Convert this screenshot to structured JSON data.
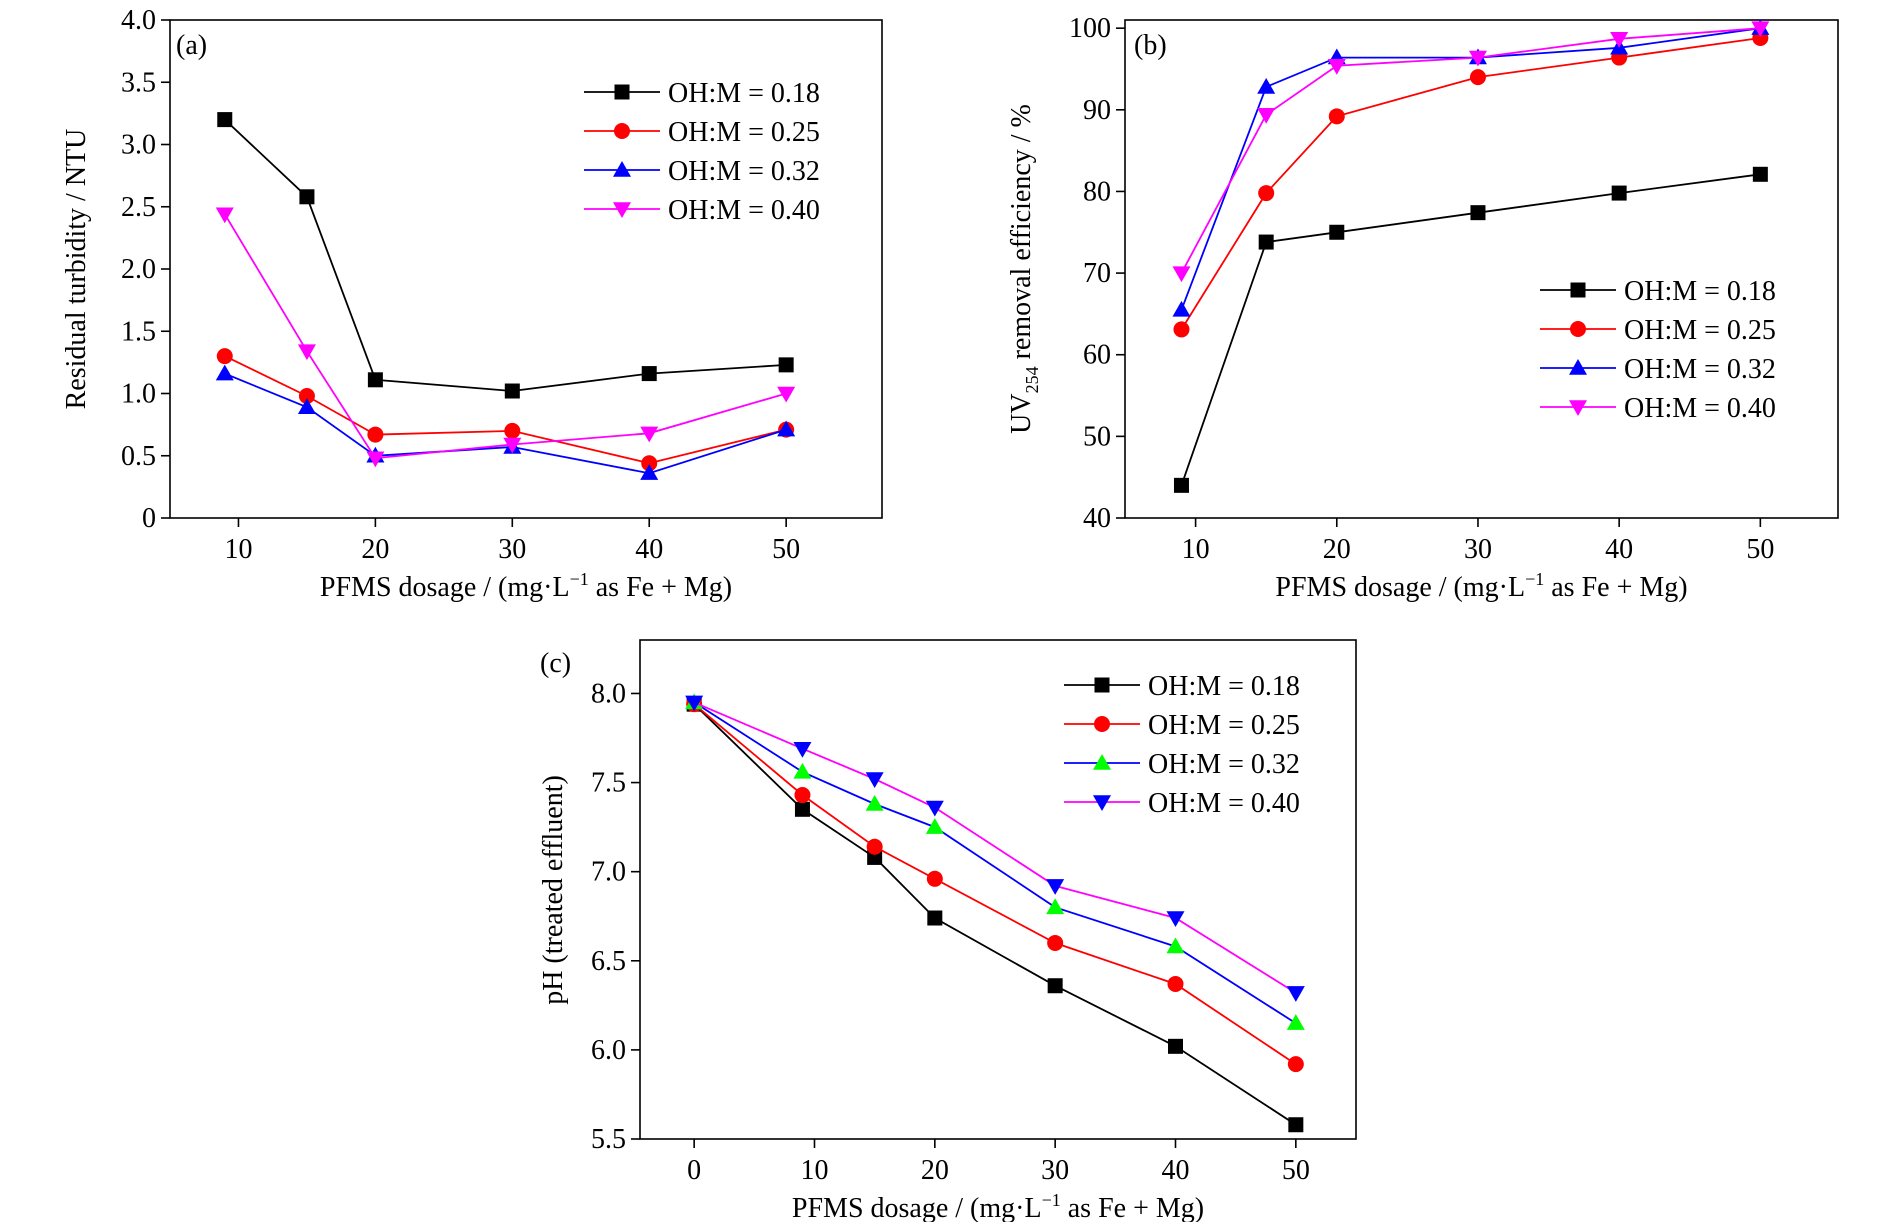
{
  "chart_data": [
    {
      "type": "line",
      "panel_label": "(a)",
      "xlabel": "PFMS dosage / (mg·L",
      "xlabel_sup": "−1",
      "xlabel_tail": " as Fe + Mg)",
      "ylabel": "Residual turbidity / NTU",
      "xlim": [
        5,
        57
      ],
      "ylim": [
        0,
        4.0
      ],
      "x_ticks": [
        10,
        20,
        30,
        40,
        50
      ],
      "x_tick_labels": [
        "10",
        "20",
        "30",
        "40",
        "50"
      ],
      "y_ticks": [
        0,
        0.5,
        1.0,
        1.5,
        2.0,
        2.5,
        3.0,
        3.5,
        4.0
      ],
      "y_tick_labels": [
        "0",
        "0.5",
        "1.0",
        "1.5",
        "2.0",
        "2.5",
        "3.0",
        "3.5",
        "4.0"
      ],
      "legend_position": "top-right",
      "series": [
        {
          "name": "OH:M = 0.18",
          "color": "#000000",
          "marker": "square",
          "x": [
            9,
            15,
            20,
            30,
            40,
            50
          ],
          "y": [
            3.2,
            2.58,
            1.11,
            1.02,
            1.16,
            1.23
          ]
        },
        {
          "name": "OH:M = 0.25",
          "color": "#ff0000",
          "marker": "circle",
          "x": [
            9,
            15,
            20,
            30,
            40,
            50
          ],
          "y": [
            1.3,
            0.98,
            0.67,
            0.7,
            0.44,
            0.71
          ]
        },
        {
          "name": "OH:M = 0.32",
          "color": "#0000ff",
          "marker": "triangle-up",
          "x": [
            9,
            15,
            20,
            30,
            40,
            50
          ],
          "y": [
            1.16,
            0.89,
            0.5,
            0.57,
            0.36,
            0.71
          ]
        },
        {
          "name": "OH:M = 0.40",
          "color": "#ff00ff",
          "marker": "triangle-down",
          "x": [
            9,
            15,
            20,
            30,
            40,
            50
          ],
          "y": [
            2.44,
            1.34,
            0.48,
            0.59,
            0.68,
            1.0
          ]
        }
      ]
    },
    {
      "type": "line",
      "panel_label": "(b)",
      "xlabel": "PFMS dosage / (mg·L",
      "xlabel_sup": "−1",
      "xlabel_tail": " as Fe + Mg)",
      "ylabel_main": "UV",
      "ylabel_sub": "254",
      "ylabel_tail": " removal efficiency / %",
      "xlim": [
        5,
        55.5
      ],
      "ylim": [
        40,
        101
      ],
      "x_ticks": [
        10,
        20,
        30,
        40,
        50
      ],
      "x_tick_labels": [
        "10",
        "20",
        "30",
        "40",
        "50"
      ],
      "y_ticks": [
        40,
        50,
        60,
        70,
        80,
        90,
        100
      ],
      "y_tick_labels": [
        "40",
        "50",
        "60",
        "70",
        "80",
        "90",
        "100"
      ],
      "legend_position": "center-right",
      "series": [
        {
          "name": "OH:M = 0.18",
          "color": "#000000",
          "marker": "square",
          "x": [
            9,
            15,
            20,
            30,
            40,
            50
          ],
          "y": [
            44.0,
            73.8,
            75.0,
            77.4,
            79.8,
            82.1
          ]
        },
        {
          "name": "OH:M = 0.25",
          "color": "#ff0000",
          "marker": "circle",
          "x": [
            9,
            15,
            20,
            30,
            40,
            50
          ],
          "y": [
            63.1,
            79.8,
            89.2,
            94.0,
            96.4,
            98.8
          ]
        },
        {
          "name": "OH:M = 0.32",
          "color": "#0000ff",
          "marker": "triangle-up",
          "x": [
            9,
            15,
            20,
            30,
            40,
            50
          ],
          "y": [
            65.5,
            92.8,
            96.4,
            96.4,
            97.6,
            100.0
          ]
        },
        {
          "name": "OH:M = 0.40",
          "color": "#ff00ff",
          "marker": "triangle-down",
          "x": [
            9,
            15,
            20,
            30,
            40,
            50
          ],
          "y": [
            70.0,
            89.4,
            95.4,
            96.4,
            98.7,
            100.0
          ]
        }
      ]
    },
    {
      "type": "line",
      "panel_label": "(c)",
      "xlabel": "PFMS dosage / (mg·L",
      "xlabel_sup": "−1",
      "xlabel_tail": " as Fe + Mg)",
      "ylabel": "pH (treated effluent)",
      "xlim": [
        -4.5,
        55
      ],
      "ylim": [
        5.5,
        8.3
      ],
      "x_ticks": [
        0,
        10,
        20,
        30,
        40,
        50
      ],
      "x_tick_labels": [
        "0",
        "10",
        "20",
        "30",
        "40",
        "50"
      ],
      "y_ticks": [
        5.5,
        6.0,
        6.5,
        7.0,
        7.5,
        8.0
      ],
      "y_tick_labels": [
        "5.5",
        "6.0",
        "6.5",
        "7.0",
        "7.5",
        "8.0"
      ],
      "legend_position": "top-right",
      "series": [
        {
          "name": "OH:M = 0.18",
          "color": "#000000",
          "marker": "square",
          "x": [
            0,
            9,
            15,
            20,
            30,
            40,
            50
          ],
          "y": [
            7.94,
            7.35,
            7.08,
            6.74,
            6.36,
            6.02,
            5.58
          ]
        },
        {
          "name": "OH:M = 0.25",
          "color": "#ff0000",
          "marker": "circle",
          "x": [
            0,
            9,
            15,
            20,
            30,
            40,
            50
          ],
          "y": [
            7.94,
            7.43,
            7.14,
            6.96,
            6.6,
            6.37,
            5.92
          ]
        },
        {
          "name": "OH:M = 0.32",
          "color": "#0000ff",
          "marker": "triangle-up",
          "marker_color": "#00ff00",
          "x": [
            0,
            9,
            15,
            20,
            30,
            40,
            50
          ],
          "y": [
            7.95,
            7.56,
            7.38,
            7.25,
            6.8,
            6.58,
            6.15
          ]
        },
        {
          "name": "OH:M = 0.40",
          "color": "#ff00ff",
          "marker": "triangle-down",
          "marker_color": "#0000ff",
          "x": [
            0,
            9,
            15,
            20,
            30,
            40,
            50
          ],
          "y": [
            7.95,
            7.69,
            7.52,
            7.36,
            6.92,
            6.74,
            6.32
          ]
        }
      ]
    }
  ]
}
